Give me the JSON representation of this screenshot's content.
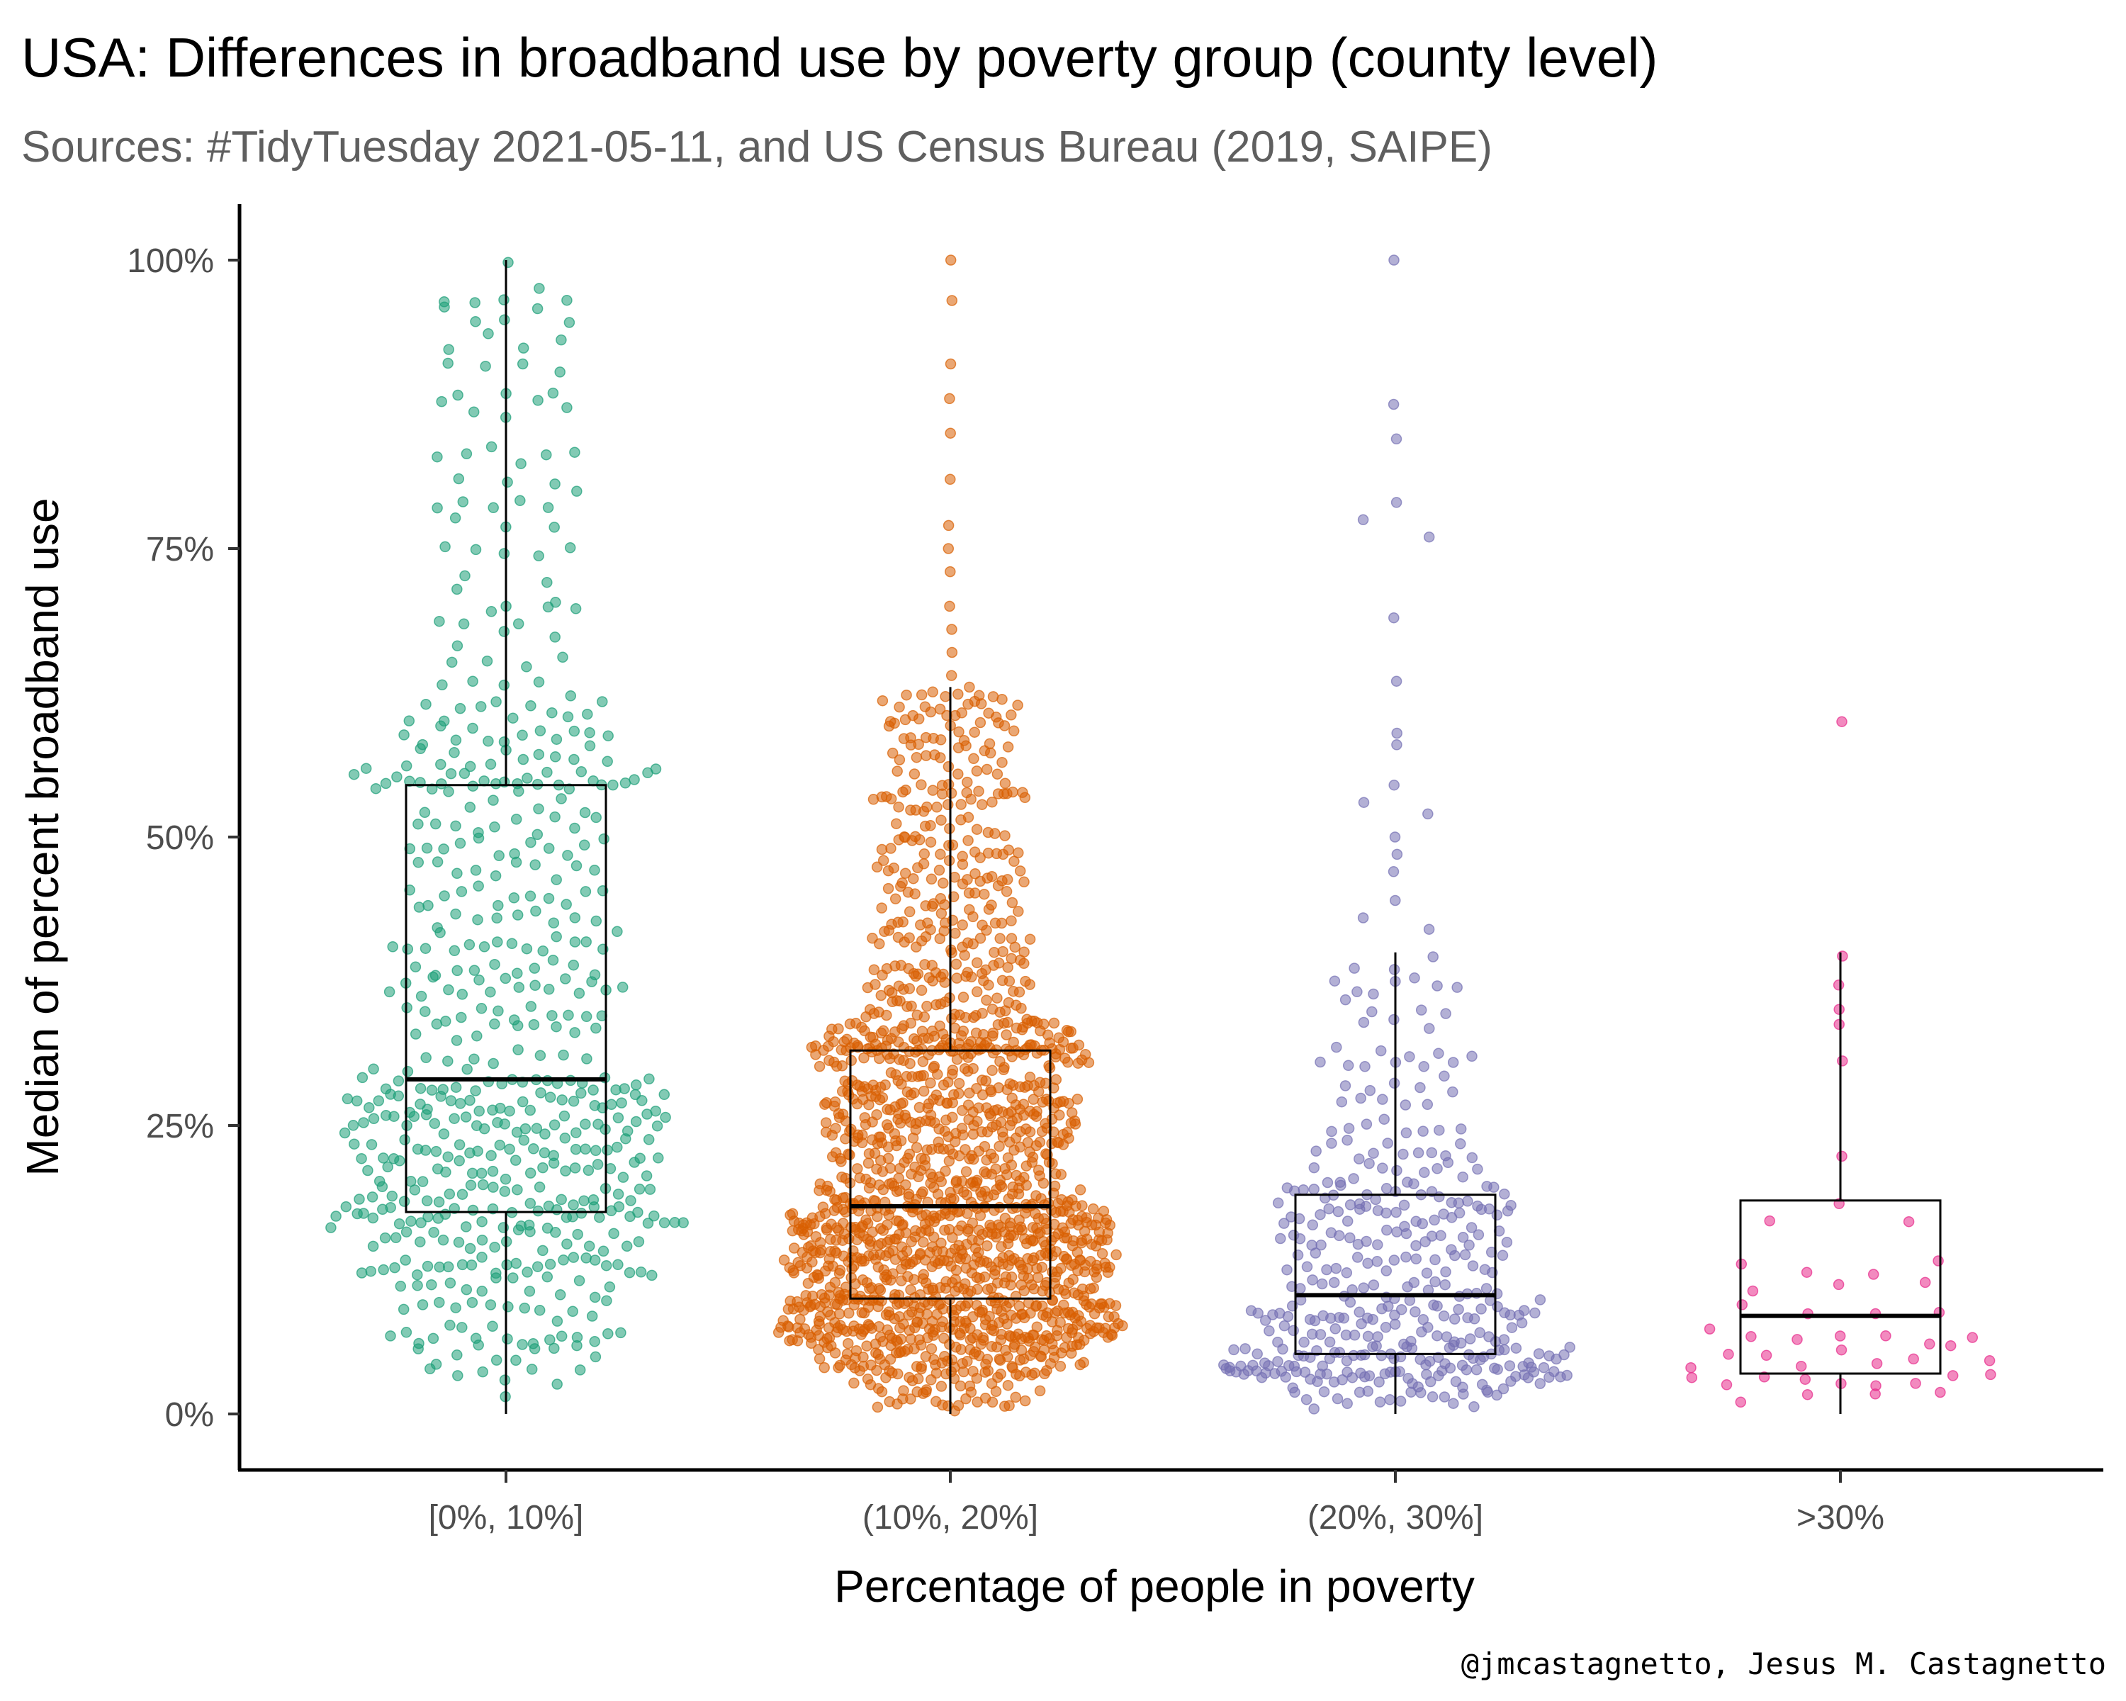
{
  "chart_data": {
    "type": "boxplot",
    "title": "USA: Differences in broadband use by poverty group (county level)",
    "subtitle": "Sources: #TidyTuesday 2021-05-11, and US Census Bureau (2019, SAIPE)",
    "xlabel": "Percentage of people in poverty",
    "ylabel": "Median of percent broadband use",
    "caption": "@jmcastagnetto, Jesus M. Castagnetto",
    "ylim": [
      0,
      1
    ],
    "yticks": [
      {
        "value": 0,
        "label": "0%"
      },
      {
        "value": 0.25,
        "label": "25%"
      },
      {
        "value": 0.5,
        "label": "50%"
      },
      {
        "value": 0.75,
        "label": "75%"
      },
      {
        "value": 1,
        "label": "100%"
      }
    ],
    "grid": false,
    "legend": "none",
    "categories": [
      "[0%, 10%]",
      "(10%, 20%]",
      "(20%, 30%]",
      ">30%"
    ],
    "groups": [
      {
        "category": "[0%, 10%]",
        "color": "#1b9e77",
        "approx_count": 600,
        "box": {
          "min": 0.0,
          "q1": 0.175,
          "median": 0.29,
          "q3": 0.545,
          "max": 1.0
        }
      },
      {
        "category": "(10%, 20%]",
        "color": "#d95f02",
        "approx_count": 1700,
        "box": {
          "min": 0.0,
          "q1": 0.1,
          "median": 0.18,
          "q3": 0.315,
          "max": 0.63
        }
      },
      {
        "category": "(20%, 30%]",
        "color": "#7570b3",
        "approx_count": 420,
        "box": {
          "min": 0.0,
          "q1": 0.052,
          "median": 0.103,
          "q3": 0.19,
          "max": 0.4
        }
      },
      {
        "category": ">30%",
        "color": "#e7298a",
        "approx_count": 50,
        "box": {
          "min": 0.0,
          "q1": 0.035,
          "median": 0.085,
          "q3": 0.185,
          "max": 0.4
        }
      }
    ],
    "visible_outliers": {
      "(10%, 20%]": [
        1.0,
        0.965,
        0.91,
        0.88,
        0.85,
        0.81,
        0.77,
        0.75,
        0.73,
        0.7,
        0.68,
        0.66,
        0.64
      ],
      "(20%, 30%]": [
        1.0,
        0.875,
        0.845,
        0.79,
        0.775,
        0.76,
        0.69,
        0.635,
        0.59,
        0.58,
        0.545,
        0.53,
        0.52,
        0.5,
        0.485,
        0.47,
        0.445,
        0.43,
        0.42
      ],
      ">30%": [
        0.6
      ]
    }
  }
}
